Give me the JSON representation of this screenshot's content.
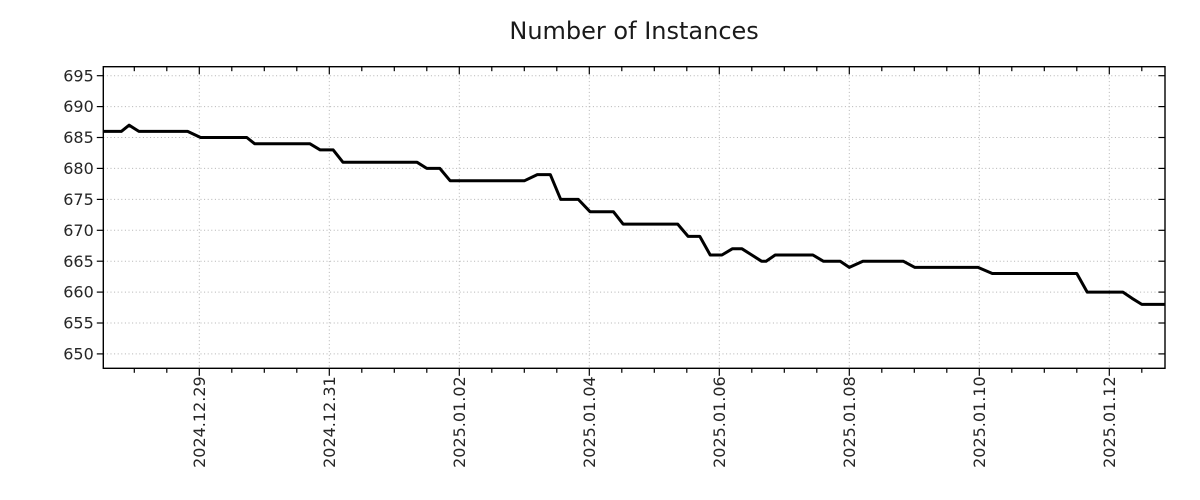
{
  "chart_data": {
    "type": "line",
    "title": "Number of Instances",
    "background": "#ffffff",
    "text_color": "#262626",
    "frame_color": "#000000",
    "grid": {
      "style": "dotted",
      "color": "#b3b3b3"
    },
    "x_axis": {
      "unit": "days since 2024-12-29",
      "lim": [
        -1.477,
        14.857
      ],
      "major_tick_positions": [
        0,
        2,
        4,
        6,
        8,
        10,
        12,
        14
      ],
      "major_tick_labels": [
        "2024.12.29",
        "2024.12.31",
        "2025.01.02",
        "2025.01.04",
        "2025.01.06",
        "2025.01.08",
        "2025.01.10",
        "2025.01.12"
      ],
      "minor_tick_step": 0.5,
      "label_rotation_deg": -90
    },
    "y_axis": {
      "lim": [
        647.67,
        696.46
      ],
      "tick_values": [
        650,
        655,
        660,
        665,
        670,
        675,
        680,
        685,
        690,
        695
      ],
      "tick_labels": [
        "650",
        "655",
        "660",
        "665",
        "670",
        "675",
        "680",
        "685",
        "690",
        "695"
      ]
    },
    "series": [
      {
        "name": "instances",
        "color": "#000000",
        "width": 3,
        "points": [
          [
            -1.477,
            686
          ],
          [
            -1.2,
            686
          ],
          [
            -1.08,
            687
          ],
          [
            -0.93,
            686
          ],
          [
            -0.18,
            686
          ],
          [
            0.02,
            685
          ],
          [
            0.73,
            685
          ],
          [
            0.85,
            684
          ],
          [
            1.7,
            684
          ],
          [
            1.86,
            683
          ],
          [
            2.06,
            683
          ],
          [
            2.21,
            681
          ],
          [
            3.35,
            681
          ],
          [
            3.5,
            680
          ],
          [
            3.7,
            680
          ],
          [
            3.86,
            678
          ],
          [
            5.0,
            678
          ],
          [
            5.2,
            679
          ],
          [
            5.4,
            679
          ],
          [
            5.56,
            675
          ],
          [
            5.83,
            675
          ],
          [
            6.01,
            673
          ],
          [
            6.37,
            673
          ],
          [
            6.52,
            671
          ],
          [
            7.36,
            671
          ],
          [
            7.52,
            669
          ],
          [
            7.7,
            669
          ],
          [
            7.86,
            666
          ],
          [
            8.04,
            666
          ],
          [
            8.2,
            667
          ],
          [
            8.35,
            667
          ],
          [
            8.5,
            666
          ],
          [
            8.65,
            665
          ],
          [
            8.72,
            665
          ],
          [
            8.86,
            666
          ],
          [
            9.44,
            666
          ],
          [
            9.6,
            665
          ],
          [
            9.86,
            665
          ],
          [
            10.0,
            664
          ],
          [
            10.21,
            665
          ],
          [
            10.83,
            665
          ],
          [
            11.01,
            664
          ],
          [
            11.98,
            664
          ],
          [
            12.2,
            663
          ],
          [
            13.5,
            663
          ],
          [
            13.66,
            660
          ],
          [
            14.21,
            660
          ],
          [
            14.35,
            659
          ],
          [
            14.5,
            658
          ],
          [
            14.857,
            658
          ]
        ]
      }
    ]
  }
}
